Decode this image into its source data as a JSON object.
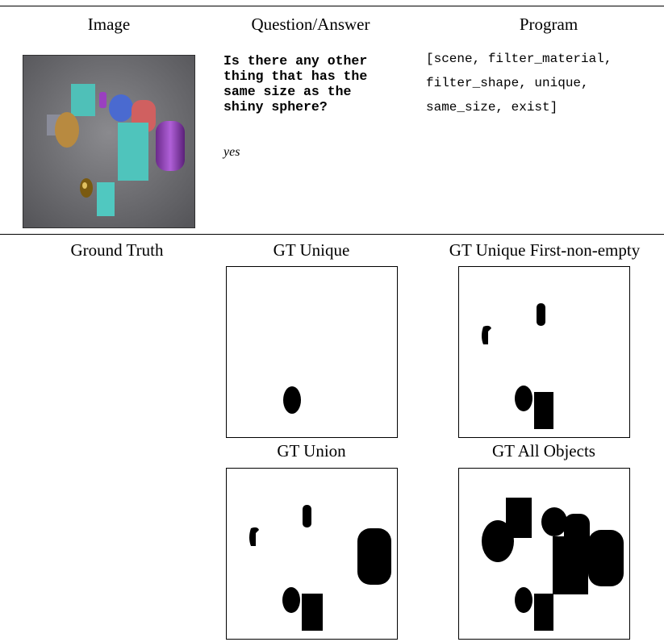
{
  "headers": {
    "image": "Image",
    "qa": "Question/Answer",
    "program": "Program"
  },
  "question": "Is there any other thing that has the same size as the shiny sphere?",
  "answer": "yes",
  "program": [
    "[scene, filter_material,",
    "filter_shape, unique,",
    "same_size, exist]"
  ],
  "ground_truth": {
    "label": "Ground Truth",
    "panels": [
      "GT Unique",
      "GT Unique First-non-empty",
      "GT Union",
      "GT All Objects"
    ]
  }
}
